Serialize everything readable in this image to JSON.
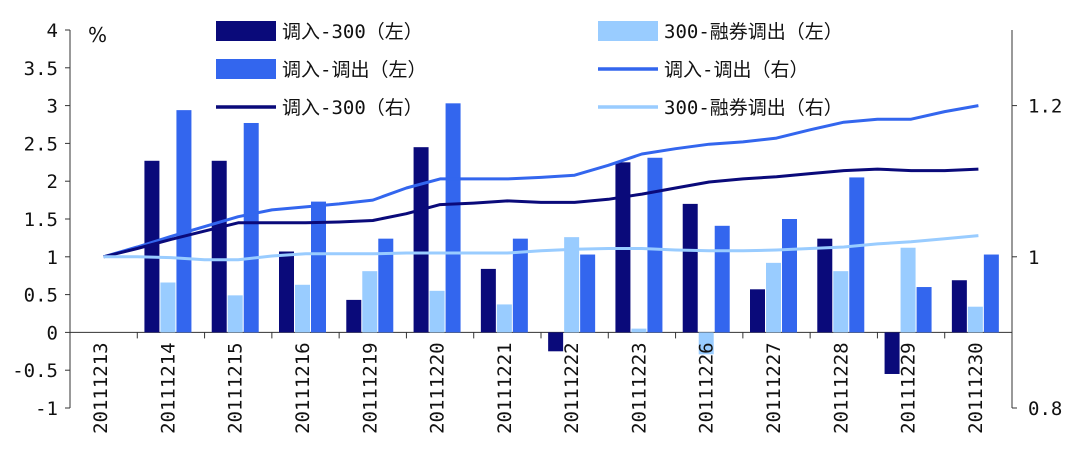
{
  "chart_data": {
    "type": "bar",
    "unit_label": "%",
    "categories": [
      "20111213",
      "20111214",
      "20111215",
      "20111216",
      "20111219",
      "20111220",
      "20111221",
      "20111222",
      "20111223",
      "20111226",
      "20111227",
      "20111228",
      "20111229",
      "20111230"
    ],
    "left_axis": {
      "ylim": [
        -1,
        4
      ],
      "ticks": [
        "-1",
        "-0.5",
        "0",
        "0.5",
        "1",
        "1.5",
        "2",
        "2.5",
        "3",
        "3.5",
        "4"
      ]
    },
    "right_axis": {
      "ylim": [
        0.8,
        1.3
      ],
      "ticks": [
        "0.8",
        "1",
        "1.2"
      ]
    },
    "legend": [
      "调入-300（左）",
      "300-融券调出（左）",
      "调入-调出（左）",
      "调入-调出（右）",
      "调入-300（右）",
      "300-融券调出（右）"
    ],
    "colors": {
      "dark": "#0a0a7a",
      "light": "#99ccff",
      "medium": "#3366ee"
    },
    "bars": [
      {
        "name": "调入-300（左）",
        "color": "#0a0a7a",
        "values": [
          0,
          2.27,
          2.27,
          1.07,
          0.43,
          2.45,
          0.84,
          -0.25,
          2.25,
          1.7,
          0.57,
          1.24,
          -0.55,
          0.69
        ]
      },
      {
        "name": "300-融券调出（左）",
        "color": "#99ccff",
        "values": [
          0,
          0.66,
          0.49,
          0.63,
          0.81,
          0.55,
          0.37,
          1.26,
          0.05,
          -0.29,
          0.92,
          0.81,
          1.12,
          0.34
        ]
      },
      {
        "name": "调入-调出（左）",
        "color": "#3366ee",
        "values": [
          0,
          2.94,
          2.77,
          1.73,
          1.24,
          3.03,
          1.24,
          1.03,
          2.31,
          1.41,
          1.5,
          2.05,
          0.6,
          1.03
        ]
      }
    ],
    "lines": [
      {
        "name": "调入-调出（右）",
        "color": "#3366ee",
        "x": [
          0,
          0.5,
          1,
          1.5,
          2,
          2.5,
          3,
          3.5,
          4,
          4.5,
          5,
          5.5,
          6,
          6.5,
          7,
          7.5,
          8,
          8.5,
          9,
          9.5,
          10,
          10.5,
          11,
          11.5,
          12,
          12.5,
          13
        ],
        "values": [
          1.0,
          1.013,
          1.027,
          1.04,
          1.053,
          1.062,
          1.066,
          1.07,
          1.075,
          1.091,
          1.103,
          1.103,
          1.103,
          1.105,
          1.108,
          1.121,
          1.136,
          1.143,
          1.149,
          1.152,
          1.157,
          1.168,
          1.178,
          1.182,
          1.182,
          1.192,
          1.2
        ]
      },
      {
        "name": "调入-300（右）",
        "color": "#0a0a7a",
        "x": [
          0,
          0.5,
          1,
          1.5,
          2,
          2.5,
          3,
          3.5,
          4,
          4.5,
          5,
          5.5,
          6,
          6.5,
          7,
          7.5,
          8,
          8.5,
          9,
          9.5,
          10,
          10.5,
          11,
          11.5,
          12,
          12.5,
          13
        ],
        "values": [
          1.0,
          1.011,
          1.023,
          1.034,
          1.045,
          1.045,
          1.045,
          1.046,
          1.048,
          1.057,
          1.069,
          1.071,
          1.074,
          1.072,
          1.072,
          1.076,
          1.083,
          1.091,
          1.099,
          1.103,
          1.106,
          1.11,
          1.114,
          1.116,
          1.114,
          1.114,
          1.116
        ]
      },
      {
        "name": "300-融券调出（右）",
        "color": "#99ccff",
        "x": [
          0,
          0.5,
          1,
          1.5,
          2,
          2.5,
          3,
          3.5,
          4,
          4.5,
          5,
          5.5,
          6,
          6.5,
          7,
          7.5,
          8,
          8.5,
          9,
          9.5,
          10,
          10.5,
          11,
          11.5,
          12,
          12.5,
          13
        ],
        "values": [
          1.0,
          1.0,
          0.999,
          0.996,
          0.996,
          1.001,
          1.004,
          1.004,
          1.004,
          1.005,
          1.005,
          1.005,
          1.005,
          1.008,
          1.01,
          1.011,
          1.011,
          1.009,
          1.008,
          1.008,
          1.009,
          1.011,
          1.013,
          1.017,
          1.02,
          1.024,
          1.028
        ]
      }
    ]
  }
}
